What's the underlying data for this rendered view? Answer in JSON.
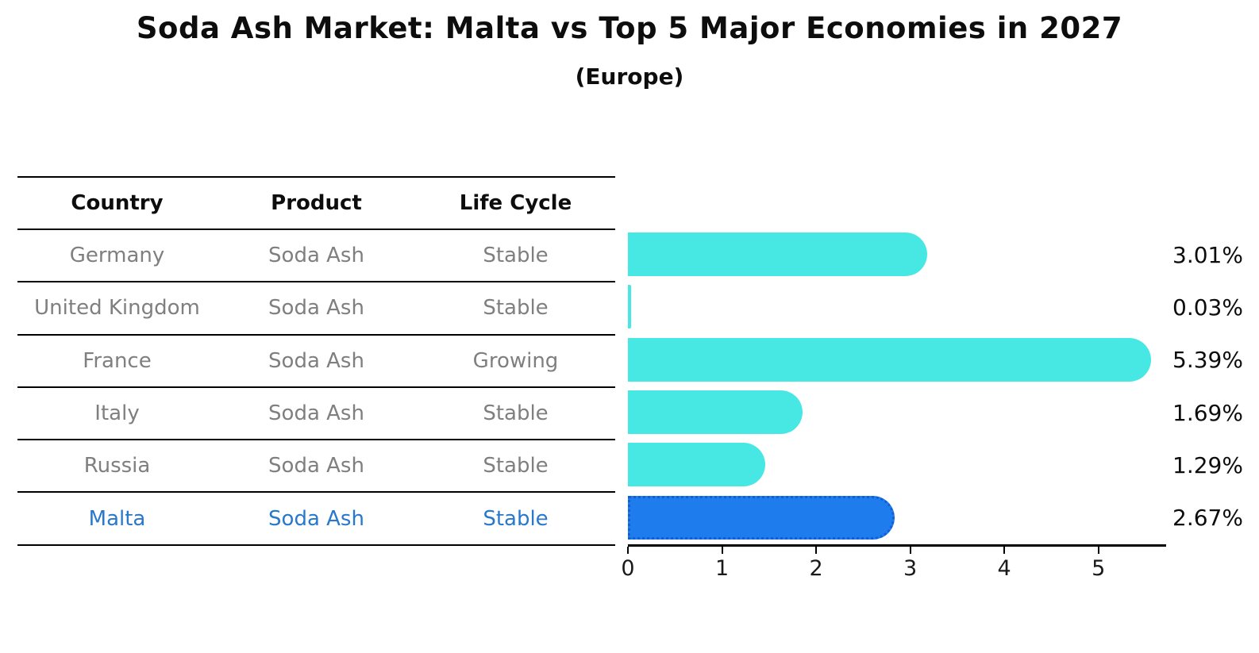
{
  "title": "Soda Ash Market: Malta vs Top 5 Major Economies in 2027",
  "subtitle": "(Europe)",
  "table": {
    "headers": [
      "Country",
      "Product",
      "Life Cycle"
    ],
    "rows": [
      {
        "country": "Germany",
        "product": "Soda Ash",
        "life_cycle": "Stable",
        "highlight": false
      },
      {
        "country": "United Kingdom",
        "product": "Soda Ash",
        "life_cycle": "Stable",
        "highlight": false
      },
      {
        "country": "France",
        "product": "Soda Ash",
        "life_cycle": "Growing",
        "highlight": false
      },
      {
        "country": "Italy",
        "product": "Soda Ash",
        "life_cycle": "Stable",
        "highlight": false
      },
      {
        "country": "Russia",
        "product": "Soda Ash",
        "life_cycle": "Stable",
        "highlight": false
      },
      {
        "country": "Malta",
        "product": "Soda Ash",
        "life_cycle": "Stable",
        "highlight": true
      }
    ]
  },
  "chart_data": {
    "type": "bar",
    "orientation": "horizontal",
    "title": "Soda Ash Market: Malta vs Top 5 Major Economies in 2027 (Europe)",
    "categories": [
      "Germany",
      "United Kingdom",
      "France",
      "Italy",
      "Russia",
      "Malta"
    ],
    "values": [
      3.01,
      0.03,
      5.39,
      1.69,
      1.29,
      2.67
    ],
    "value_labels": [
      "3.01%",
      "0.03%",
      "5.39%",
      "1.69%",
      "1.29%",
      "2.67%"
    ],
    "x_ticks": [
      "0",
      "1",
      "2",
      "3",
      "4",
      "5"
    ],
    "xlim": [
      0,
      5.72
    ],
    "grid": false,
    "legend": false,
    "highlight_index": 5,
    "bar_color": "#47E8E4",
    "highlight_bar_color": "#1E7CEC",
    "highlight_border_color": "#0E5FD8",
    "highlight_text_color": "#2878CC"
  }
}
